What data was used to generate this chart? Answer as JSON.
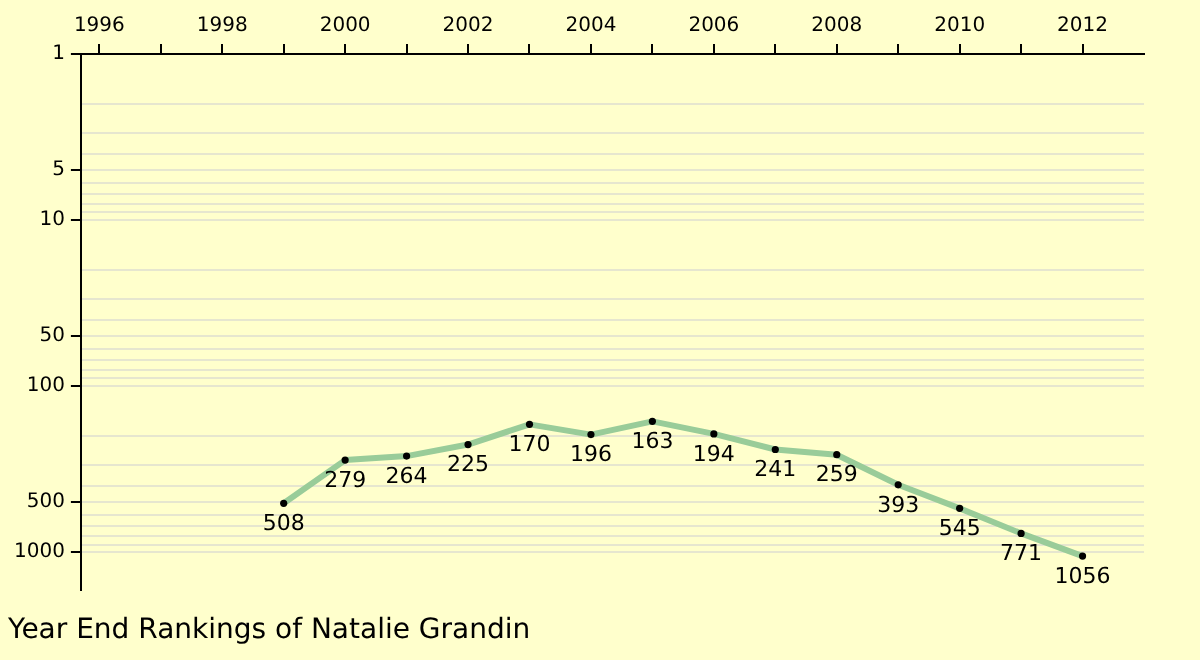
{
  "chart_data": {
    "type": "line",
    "title": "Year End Rankings of Natalie Grandin",
    "x": [
      1999,
      2000,
      2001,
      2002,
      2003,
      2004,
      2005,
      2006,
      2007,
      2008,
      2009,
      2010,
      2011,
      2012
    ],
    "series": [
      {
        "color": "#99cc99",
        "values": [
          508,
          279,
          264,
          225,
          170,
          196,
          163,
          194,
          241,
          259,
          393,
          545,
          771,
          1056
        ]
      }
    ],
    "xlim": [
      1995.7,
      2013
    ],
    "xticks": [
      1996,
      {
        "value": 1997,
        "label": null
      },
      1998,
      {
        "value": 1999,
        "label": null
      },
      2000,
      {
        "value": 2001,
        "label": null
      },
      2002,
      {
        "value": 2003,
        "label": null
      },
      2004,
      {
        "value": 2005,
        "label": null
      },
      2006,
      {
        "value": 2007,
        "label": null
      },
      2008,
      {
        "value": 2009,
        "label": null
      },
      2010,
      {
        "value": 2011,
        "label": null
      },
      2012
    ],
    "ylim": [
      1700,
      1
    ],
    "yticks": [
      1,
      {
        "value": 2,
        "label": null
      },
      {
        "value": 3,
        "label": null
      },
      {
        "value": 4,
        "label": null
      },
      5,
      {
        "value": 6,
        "label": null
      },
      {
        "value": 7,
        "label": null
      },
      {
        "value": 8,
        "label": null
      },
      {
        "value": 9,
        "label": null
      },
      10,
      {
        "value": 20,
        "label": null
      },
      {
        "value": 30,
        "label": null
      },
      {
        "value": 40,
        "label": null
      },
      50,
      {
        "value": 60,
        "label": null
      },
      {
        "value": 70,
        "label": null
      },
      {
        "value": 80,
        "label": null
      },
      {
        "value": 90,
        "label": null
      },
      100,
      {
        "value": 200,
        "label": null
      },
      {
        "value": 300,
        "label": null
      },
      {
        "value": 400,
        "label": null
      },
      500,
      {
        "value": 600,
        "label": null
      },
      {
        "value": 700,
        "label": null
      },
      {
        "value": 800,
        "label": null
      },
      {
        "value": 900,
        "label": null
      },
      1000
    ],
    "log": "y",
    "grid": "y",
    "marker": "circle",
    "line_style": "solid",
    "data_labels": true,
    "legend": false
  }
}
